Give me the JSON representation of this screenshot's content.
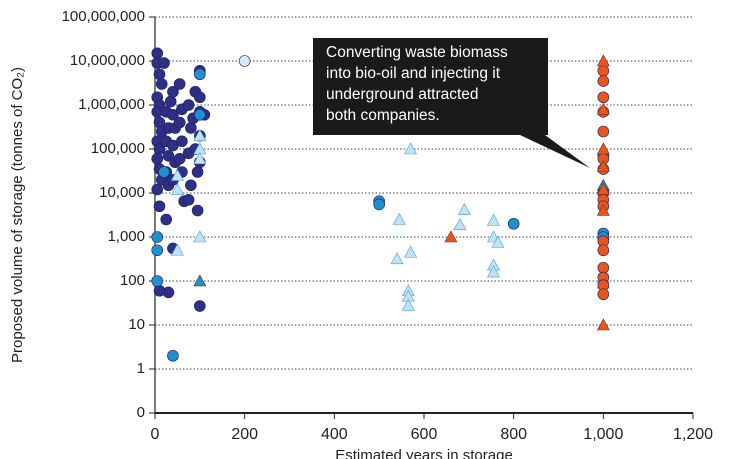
{
  "chart_data": {
    "type": "scatter",
    "y_label": "Proposed volume of storage (tonnes of CO₂)",
    "x_label": "Estimated years in storage",
    "annotation": [
      "Converting waste biomass",
      "into bio-oil and injecting it",
      "underground attracted",
      "both companies."
    ],
    "xlim": [
      0,
      1200
    ],
    "xticks": [
      0,
      200,
      400,
      600,
      800,
      {
        "value": 1000,
        "label": "1,000"
      },
      {
        "value": 1200,
        "label": "1,200"
      }
    ],
    "ylim": [
      0.1,
      100000000
    ],
    "y_log": true,
    "grid": true,
    "yticks": [
      {
        "value": 0.1,
        "label": "0"
      },
      1,
      10,
      100,
      {
        "value": 1000,
        "label": "1,000"
      },
      {
        "value": 10000,
        "label": "10,000"
      },
      {
        "value": 100000,
        "label": "100,000"
      },
      {
        "value": 1000000,
        "label": "1,000,000"
      },
      {
        "value": 10000000,
        "label": "10,000,000"
      },
      {
        "value": 100000000,
        "label": "100,000,000"
      }
    ],
    "series": [
      {
        "color": "#2e2f86",
        "marker": "circle",
        "x": [
          5,
          5,
          10,
          15,
          5,
          10,
          5,
          10,
          15,
          5,
          10,
          5,
          10,
          15,
          5,
          10,
          25,
          20,
          25,
          30,
          25,
          30,
          25,
          30,
          35,
          40,
          40,
          45,
          40,
          45,
          40,
          55,
          60,
          55,
          60,
          55,
          60,
          65,
          75,
          80,
          75,
          80,
          75,
          85,
          90,
          90,
          95,
          95,
          100,
          100,
          100,
          110,
          100,
          100,
          30,
          10,
          100,
          40
        ],
        "values": [
          15000000,
          9000000,
          5000000,
          3000000,
          1500000,
          1000000,
          700000,
          400000,
          250000,
          150000,
          100000,
          60000,
          35000,
          20000,
          12000,
          5000,
          2500,
          9000000,
          700000,
          300000,
          150000,
          70000,
          30000,
          15000,
          1200000,
          2000000,
          600000,
          300000,
          120000,
          50000,
          20000,
          3000000,
          800000,
          400000,
          150000,
          60000,
          30000,
          6500,
          1000000,
          300000,
          80000,
          15000,
          7000,
          500000,
          2000000,
          100000,
          30000,
          4000,
          6000000,
          1500000,
          700000,
          600000,
          200000,
          50000,
          55,
          60,
          27,
          550
        ]
      },
      {
        "color": "#1e8fcf",
        "marker": "circle",
        "x": [
          40,
          5,
          5,
          5,
          100,
          100,
          500,
          500,
          800,
          1000,
          1000,
          1000,
          1000,
          1000,
          20
        ],
        "values": [
          2,
          1000,
          100,
          500,
          5000000,
          600000,
          6500,
          5500,
          2000,
          70000,
          10000,
          1200,
          900,
          1000,
          30000
        ]
      },
      {
        "color": "#bfe2f7",
        "marker": "triangle",
        "x": [
          100,
          100,
          100,
          100,
          50,
          50,
          50,
          570,
          545,
          570,
          540,
          565,
          565,
          565,
          690,
          680,
          755,
          755,
          765,
          755,
          755,
          1000,
          1000
        ],
        "values": [
          200000,
          100000,
          60000,
          1000,
          25000,
          12000,
          500,
          100000,
          2500,
          450,
          320,
          60,
          45,
          28,
          4200,
          1900,
          2400,
          1000,
          750,
          230,
          160,
          120,
          90
        ]
      },
      {
        "color": "#1e8fcf",
        "marker": "triangle",
        "x": [
          100,
          1000
        ],
        "values": [
          100,
          15000
        ]
      },
      {
        "color": "#e8561f",
        "marker": "circle",
        "x": [
          1000,
          1000,
          1000,
          1000,
          1000,
          1000,
          1000,
          1000,
          1000,
          1000,
          1000,
          1000,
          1000,
          1000,
          1000,
          1000
        ],
        "values": [
          6000000,
          3500000,
          1500000,
          700000,
          250000,
          60000,
          35000,
          10000,
          7000,
          5000,
          800,
          500,
          200,
          120,
          80,
          50
        ]
      },
      {
        "color": "#e8561f",
        "marker": "triangle",
        "x": [
          1000,
          1000,
          1000,
          1000,
          1000,
          1000,
          1000,
          660
        ],
        "values": [
          10000000,
          800000,
          100000,
          40000,
          4000,
          12000,
          10,
          1000
        ]
      },
      {
        "color": "#d4ecfa",
        "marker": "circle",
        "x": [
          200
        ],
        "values": [
          10000000
        ]
      }
    ]
  }
}
